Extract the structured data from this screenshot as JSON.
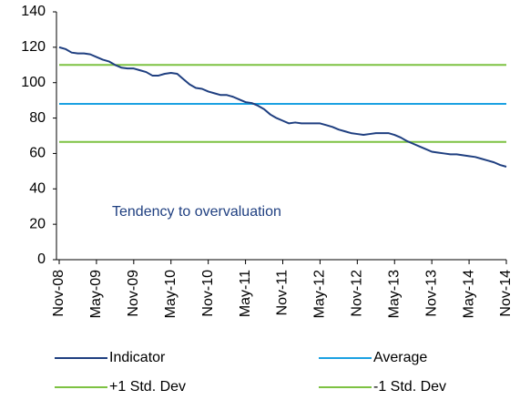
{
  "chart_data": {
    "type": "line",
    "annotation": "Tendency to overvaluation",
    "categories": [
      "Nov-08",
      null,
      null,
      null,
      null,
      null,
      "May-09",
      null,
      null,
      null,
      null,
      null,
      "Nov-09",
      null,
      null,
      null,
      null,
      null,
      "May-10",
      null,
      null,
      null,
      null,
      null,
      "Nov-10",
      null,
      null,
      null,
      null,
      null,
      "May-11",
      null,
      null,
      null,
      null,
      null,
      "Nov-11",
      null,
      null,
      null,
      null,
      null,
      "May-12",
      null,
      null,
      null,
      null,
      null,
      "Nov-12",
      null,
      null,
      null,
      null,
      null,
      "May-13",
      null,
      null,
      null,
      null,
      null,
      "Nov-13",
      null,
      null,
      null,
      null,
      null,
      "May-14",
      null,
      null,
      null,
      null,
      null,
      "Nov-14"
    ],
    "series": [
      {
        "name": "Indicator",
        "color": "#1f3f80",
        "values": [
          120,
          119,
          117,
          116.5,
          116.5,
          116,
          114.5,
          113,
          112,
          110,
          108.5,
          108,
          108,
          107,
          106,
          104,
          104,
          105,
          105.5,
          105,
          102,
          99,
          97,
          96.5,
          95,
          94,
          93,
          93,
          92,
          90.5,
          89,
          88.5,
          87,
          85,
          82,
          80,
          78.5,
          77,
          77.5,
          77,
          77,
          77,
          77,
          76,
          75,
          73.5,
          72.5,
          71.5,
          71,
          70.5,
          71,
          71.5,
          71.5,
          71.5,
          70.5,
          69,
          67,
          65.5,
          64,
          62.5,
          61,
          60.5,
          60,
          59.5,
          59.5,
          59,
          58.5,
          58,
          57,
          56,
          55,
          53.5,
          52.5
        ]
      },
      {
        "name": "Average",
        "color": "#1ba1e2",
        "values": [
          88,
          88,
          88,
          88,
          88,
          88,
          88,
          88,
          88,
          88,
          88,
          88,
          88,
          88,
          88,
          88,
          88,
          88,
          88,
          88,
          88,
          88,
          88,
          88,
          88,
          88,
          88,
          88,
          88,
          88,
          88,
          88,
          88,
          88,
          88,
          88,
          88,
          88,
          88,
          88,
          88,
          88,
          88,
          88,
          88,
          88,
          88,
          88,
          88,
          88,
          88,
          88,
          88,
          88,
          88,
          88,
          88,
          88,
          88,
          88,
          88,
          88,
          88,
          88,
          88,
          88,
          88,
          88,
          88,
          88,
          88,
          88,
          88
        ]
      },
      {
        "name": "+1 Std. Dev",
        "color": "#7dc242",
        "values": [
          110,
          110,
          110,
          110,
          110,
          110,
          110,
          110,
          110,
          110,
          110,
          110,
          110,
          110,
          110,
          110,
          110,
          110,
          110,
          110,
          110,
          110,
          110,
          110,
          110,
          110,
          110,
          110,
          110,
          110,
          110,
          110,
          110,
          110,
          110,
          110,
          110,
          110,
          110,
          110,
          110,
          110,
          110,
          110,
          110,
          110,
          110,
          110,
          110,
          110,
          110,
          110,
          110,
          110,
          110,
          110,
          110,
          110,
          110,
          110,
          110,
          110,
          110,
          110,
          110,
          110,
          110,
          110,
          110,
          110,
          110,
          110,
          110
        ]
      },
      {
        "name": "-1 Std. Dev",
        "color": "#7dc242",
        "values": [
          66.5,
          66.5,
          66.5,
          66.5,
          66.5,
          66.5,
          66.5,
          66.5,
          66.5,
          66.5,
          66.5,
          66.5,
          66.5,
          66.5,
          66.5,
          66.5,
          66.5,
          66.5,
          66.5,
          66.5,
          66.5,
          66.5,
          66.5,
          66.5,
          66.5,
          66.5,
          66.5,
          66.5,
          66.5,
          66.5,
          66.5,
          66.5,
          66.5,
          66.5,
          66.5,
          66.5,
          66.5,
          66.5,
          66.5,
          66.5,
          66.5,
          66.5,
          66.5,
          66.5,
          66.5,
          66.5,
          66.5,
          66.5,
          66.5,
          66.5,
          66.5,
          66.5,
          66.5,
          66.5,
          66.5,
          66.5,
          66.5,
          66.5,
          66.5,
          66.5,
          66.5,
          66.5,
          66.5,
          66.5,
          66.5,
          66.5,
          66.5,
          66.5,
          66.5,
          66.5,
          66.5,
          66.5,
          66.5
        ]
      }
    ],
    "ylim": [
      0,
      140
    ],
    "yticks": [
      0,
      20,
      40,
      60,
      80,
      100,
      120,
      140
    ],
    "grid": false
  }
}
